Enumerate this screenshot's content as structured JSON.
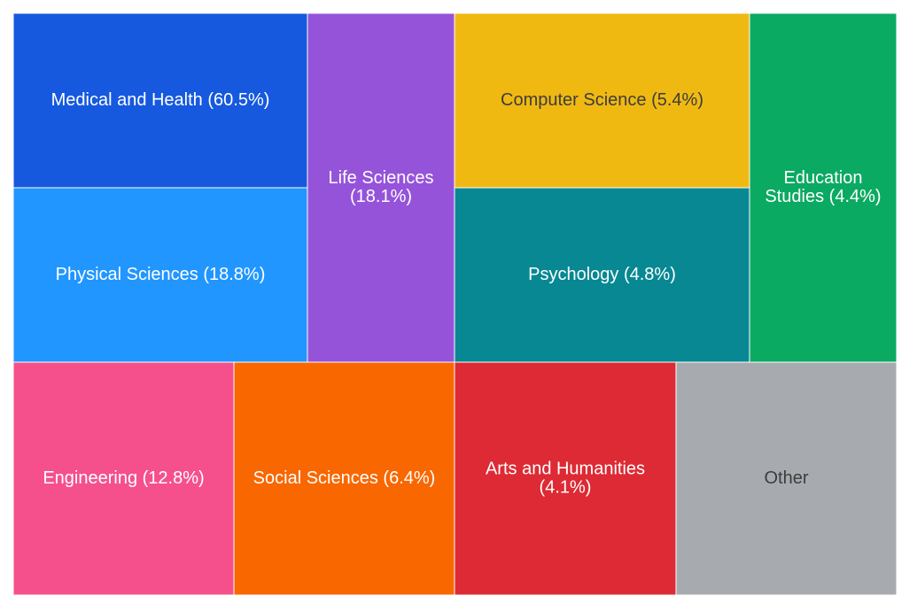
{
  "chart_data": {
    "type": "treemap",
    "title": "",
    "tiles": [
      {
        "label_lines": [
          "Medical and Health (60.5%)"
        ],
        "category": "Medical and Health",
        "percent": 60.5,
        "color": "#1659DF",
        "text_color": "#ffffff"
      },
      {
        "label_lines": [
          "Physical Sciences (18.8%)"
        ],
        "category": "Physical Sciences",
        "percent": 18.8,
        "color": "#2196FF",
        "text_color": "#ffffff"
      },
      {
        "label_lines": [
          "Life Sciences",
          "(18.1%)"
        ],
        "category": "Life Sciences",
        "percent": 18.1,
        "color": "#9553DA",
        "text_color": "#ffffff"
      },
      {
        "label_lines": [
          "Computer Science (5.4%)"
        ],
        "category": "Computer Science",
        "percent": 5.4,
        "color": "#F0B912",
        "text_color": "#3d3d3d"
      },
      {
        "label_lines": [
          "Psychology (4.8%)"
        ],
        "category": "Psychology",
        "percent": 4.8,
        "color": "#088893",
        "text_color": "#ffffff"
      },
      {
        "label_lines": [
          "Education",
          "Studies (4.4%)"
        ],
        "category": "Education Studies",
        "percent": 4.4,
        "color": "#0BAA62",
        "text_color": "#ffffff"
      },
      {
        "label_lines": [
          "Engineering (12.8%)"
        ],
        "category": "Engineering",
        "percent": 12.8,
        "color": "#F5508C",
        "text_color": "#ffffff"
      },
      {
        "label_lines": [
          "Social Sciences (6.4%)"
        ],
        "category": "Social Sciences",
        "percent": 6.4,
        "color": "#F96700",
        "text_color": "#ffffff"
      },
      {
        "label_lines": [
          "Arts and Humanities",
          "(4.1%)"
        ],
        "category": "Arts and Humanities",
        "percent": 4.1,
        "color": "#DD2A34",
        "text_color": "#ffffff"
      },
      {
        "label_lines": [
          "Other"
        ],
        "category": "Other",
        "percent": null,
        "color": "#A7AAAE",
        "text_color": "#3d3d3d"
      }
    ]
  }
}
